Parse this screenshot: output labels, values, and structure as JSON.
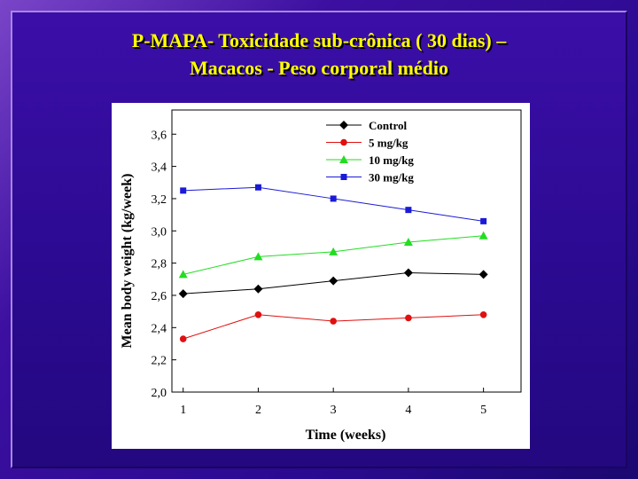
{
  "slide": {
    "title_line1": "P-MAPA- Toxicidade sub-crônica ( 30 dias) –",
    "title_line2": "Macacos - Peso corporal médio",
    "title_color": "#ffff00"
  },
  "chart_data": {
    "type": "line",
    "title": "",
    "xlabel": "Time (weeks)",
    "ylabel": "Mean body weight (kg/week)",
    "x": [
      1,
      2,
      3,
      4,
      5
    ],
    "x_tick_labels": [
      "1",
      "2",
      "3",
      "4",
      "5"
    ],
    "xlim": [
      0.85,
      5.5
    ],
    "ylim": [
      2.0,
      3.75
    ],
    "y_ticks": [
      2.0,
      2.2,
      2.4,
      2.6,
      2.8,
      3.0,
      3.2,
      3.4,
      3.6
    ],
    "y_tick_labels": [
      "2,0",
      "2,2",
      "2,4",
      "2,6",
      "2,8",
      "3,0",
      "3,2",
      "3,4",
      "3,6"
    ],
    "grid": false,
    "legend_position": "top-right",
    "series": [
      {
        "name": "Control",
        "values": [
          2.61,
          2.64,
          2.69,
          2.74,
          2.73
        ],
        "color": "#000000",
        "marker": "diamond"
      },
      {
        "name": "5 mg/kg",
        "values": [
          2.33,
          2.48,
          2.44,
          2.46,
          2.48
        ],
        "color": "#e01010",
        "marker": "circle"
      },
      {
        "name": "10 mg/kg",
        "values": [
          2.73,
          2.84,
          2.87,
          2.93,
          2.97
        ],
        "color": "#22dd22",
        "marker": "triangle"
      },
      {
        "name": "30 mg/kg",
        "values": [
          3.25,
          3.27,
          3.2,
          3.13,
          3.06
        ],
        "color": "#1a1ad6",
        "marker": "square"
      }
    ]
  }
}
